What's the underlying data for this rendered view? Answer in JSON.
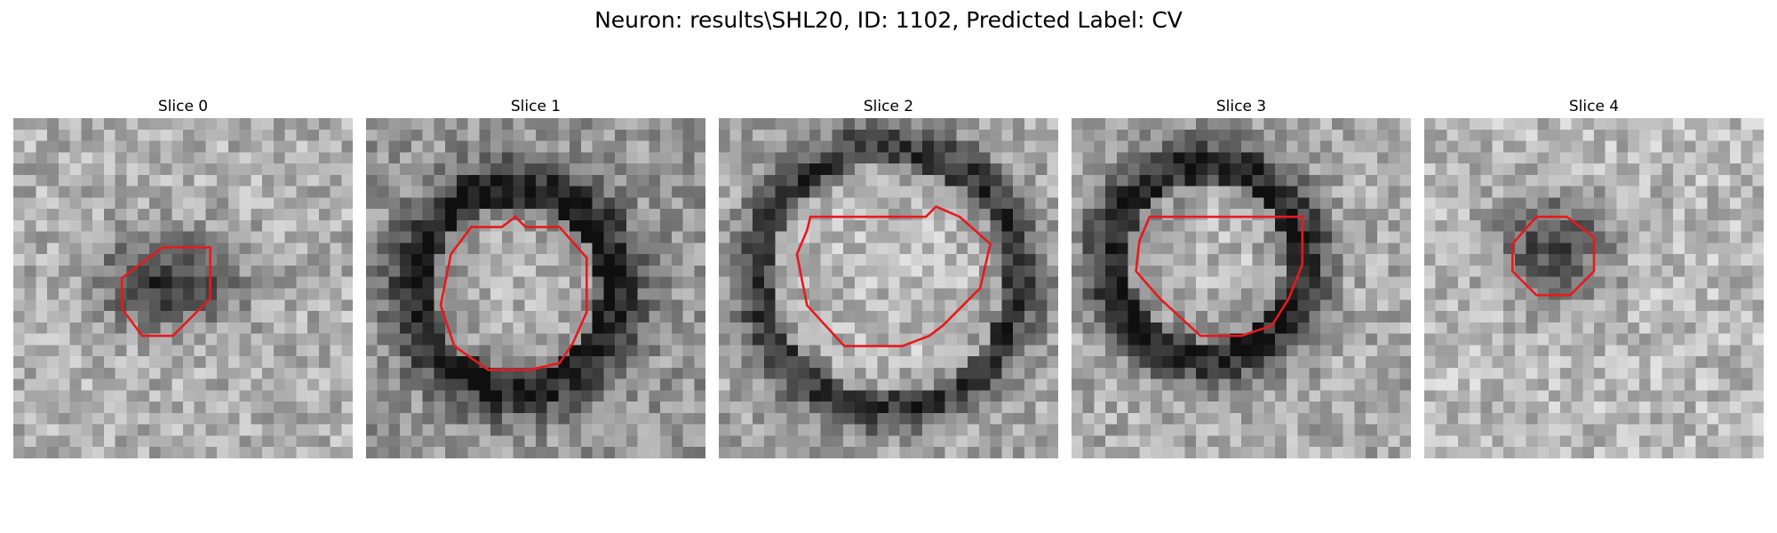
{
  "figure": {
    "title": "Neuron: results\\SHL20, ID: 1102, Predicted Label: CV"
  },
  "panels": [
    {
      "title": "Slice 0"
    },
    {
      "title": "Slice 1"
    },
    {
      "title": "Slice 2"
    },
    {
      "title": "Slice 3"
    },
    {
      "title": "Slice 4"
    }
  ],
  "colors": {
    "contour": "#e8191c",
    "background": "#ffffff"
  }
}
